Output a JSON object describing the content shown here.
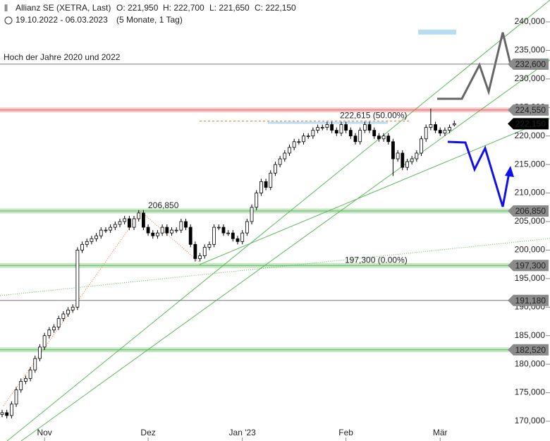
{
  "header": {
    "title": "Allianz SE (XETRA, Last)",
    "open": "O: 221,950",
    "high": "H: 222,700",
    "low": "L: 221,650",
    "close": "C: 222,150",
    "range": "19.10.2022 - 06.03.2023",
    "span": "(5 Monate, 1 Tag)"
  },
  "chart_data": {
    "type": "candlestick",
    "categories": [
      null,
      null,
      null,
      null,
      null,
      null,
      null,
      null,
      null,
      "Nov",
      null,
      null,
      null,
      null,
      null,
      null,
      null,
      null,
      null,
      null,
      null,
      null,
      null,
      null,
      null,
      null,
      null,
      null,
      null,
      null,
      null,
      "Dez",
      null,
      null,
      null,
      null,
      null,
      null,
      null,
      null,
      null,
      null,
      null,
      null,
      null,
      null,
      null,
      null,
      null,
      null,
      null,
      "Jan '23",
      null,
      null,
      null,
      null,
      null,
      null,
      null,
      null,
      null,
      null,
      null,
      null,
      null,
      null,
      null,
      null,
      null,
      null,
      null,
      null,
      null,
      "Feb",
      null,
      null,
      null,
      null,
      null,
      null,
      null,
      null,
      null,
      null,
      null,
      null,
      null,
      null,
      null,
      null,
      null,
      null,
      null,
      "Mär",
      null,
      null,
      null
    ],
    "candles": [
      [
        171.2,
        172,
        170.7,
        171.5
      ],
      [
        171.5,
        172,
        170.5,
        171
      ],
      [
        171,
        173.5,
        170.5,
        173
      ],
      [
        173,
        176,
        172.5,
        175.5
      ],
      [
        175.5,
        177.5,
        175,
        177
      ],
      [
        177,
        178,
        176.5,
        177.5
      ],
      [
        177.5,
        179.5,
        177,
        179
      ],
      [
        179,
        181.5,
        178.5,
        181
      ],
      [
        181,
        183.5,
        180.5,
        183
      ],
      [
        183,
        185.5,
        182.5,
        185
      ],
      [
        185,
        186.5,
        184.5,
        186
      ],
      [
        186,
        187,
        185.5,
        186.5
      ],
      [
        186.5,
        188.5,
        186,
        188
      ],
      [
        188,
        189.3,
        187.5,
        188.8
      ],
      [
        188.8,
        190,
        188.3,
        189.5
      ],
      [
        189.5,
        190.5,
        189,
        190
      ],
      [
        190,
        200.5,
        189.5,
        200
      ],
      [
        200,
        201.5,
        199.5,
        201
      ],
      [
        201,
        202,
        200.5,
        201.5
      ],
      [
        201.5,
        202.5,
        201,
        202
      ],
      [
        202,
        203,
        201.5,
        202.5
      ],
      [
        202.5,
        204,
        202,
        203.5
      ],
      [
        203.5,
        204,
        203,
        203.5
      ],
      [
        203.5,
        204.5,
        203,
        204
      ],
      [
        204,
        205,
        203.5,
        204.5
      ],
      [
        204.5,
        205.5,
        204,
        205
      ],
      [
        205,
        206,
        204.5,
        205.5
      ],
      [
        205.5,
        206,
        203.5,
        204
      ],
      [
        204,
        206,
        203.5,
        205.5
      ],
      [
        205.5,
        207,
        205,
        206.5
      ],
      [
        206.5,
        207,
        203.5,
        204
      ],
      [
        204,
        204.5,
        202.5,
        203
      ],
      [
        203,
        203.5,
        202,
        202.5
      ],
      [
        202.5,
        203.5,
        202,
        203
      ],
      [
        203,
        204.5,
        202.5,
        204
      ],
      [
        204,
        204.5,
        202.5,
        203
      ],
      [
        203,
        204,
        202.5,
        203.5
      ],
      [
        203.5,
        204,
        203,
        203.5
      ],
      [
        203.5,
        205.5,
        203,
        205
      ],
      [
        205,
        205.5,
        203.5,
        204
      ],
      [
        204,
        204.5,
        200.5,
        201
      ],
      [
        201,
        201.5,
        198,
        198.5
      ],
      [
        198.5,
        199.5,
        198,
        199
      ],
      [
        199,
        201,
        198.5,
        200.5
      ],
      [
        200.5,
        201.5,
        200,
        201
      ],
      [
        201,
        204.5,
        200.5,
        204
      ],
      [
        204,
        204.5,
        203.5,
        204
      ],
      [
        204,
        204.5,
        202.5,
        203
      ],
      [
        203,
        203.5,
        202.5,
        203
      ],
      [
        203,
        203.5,
        201.5,
        202
      ],
      [
        202,
        202.5,
        201,
        201.5
      ],
      [
        201.5,
        203.5,
        201,
        203
      ],
      [
        203,
        205.5,
        202.5,
        205
      ],
      [
        205,
        208,
        204.5,
        207.5
      ],
      [
        207.5,
        210.5,
        207,
        210
      ],
      [
        210,
        212.5,
        209.5,
        212
      ],
      [
        212,
        212.5,
        210.5,
        211
      ],
      [
        211,
        214,
        210.5,
        213.5
      ],
      [
        213.5,
        215.5,
        213,
        215
      ],
      [
        215,
        216.5,
        214.5,
        216
      ],
      [
        216,
        217.5,
        215.5,
        217
      ],
      [
        217,
        218.5,
        216.5,
        218
      ],
      [
        218,
        219.5,
        217.5,
        219
      ],
      [
        219,
        219.5,
        218.5,
        219
      ],
      [
        219,
        220.5,
        218.5,
        220
      ],
      [
        220,
        220.5,
        219.5,
        220
      ],
      [
        220,
        221.5,
        219.5,
        221
      ],
      [
        221,
        222,
        220.5,
        221.5
      ],
      [
        221.5,
        222,
        221,
        221.5
      ],
      [
        221.5,
        222.5,
        221,
        222
      ],
      [
        222,
        222.5,
        220.5,
        221
      ],
      [
        221,
        221.5,
        220,
        220.5
      ],
      [
        220.5,
        222.5,
        220,
        222
      ],
      [
        222,
        222.5,
        220.5,
        221
      ],
      [
        221,
        221.5,
        219.5,
        220
      ],
      [
        220,
        220.5,
        218.5,
        219
      ],
      [
        219,
        221.5,
        218.5,
        221
      ],
      [
        221,
        222.5,
        220.5,
        222
      ],
      [
        222,
        222.5,
        220.5,
        221
      ],
      [
        221,
        221.5,
        219.5,
        220
      ],
      [
        220,
        220.5,
        219,
        219.5
      ],
      [
        219.5,
        220.5,
        219,
        220
      ],
      [
        220,
        220.5,
        218.5,
        219
      ],
      [
        219,
        219.5,
        213,
        216
      ],
      [
        216,
        217.5,
        215.5,
        217
      ],
      [
        217,
        217.5,
        214,
        214.5
      ],
      [
        214.5,
        216,
        214,
        215.5
      ],
      [
        215.5,
        216.5,
        215,
        216
      ],
      [
        216,
        217.5,
        215.5,
        217
      ],
      [
        217,
        220,
        216.5,
        219.5
      ],
      [
        219.5,
        222,
        219,
        221.5
      ],
      [
        221.5,
        224.8,
        221,
        222
      ],
      [
        222,
        222.5,
        220.5,
        221
      ],
      [
        221,
        221.5,
        220,
        220.5
      ],
      [
        220.5,
        221.5,
        220,
        221
      ],
      [
        221,
        222,
        220.5,
        221.5
      ],
      [
        221.95,
        222.7,
        221.65,
        222.15
      ]
    ],
    "up_color": "#ffffff",
    "down_color": "#000000",
    "ylim": [
      168,
      243
    ],
    "yticks": [
      {
        "value": 170,
        "label": "170,000"
      },
      {
        "value": 175,
        "label": "175,000"
      },
      {
        "value": 180,
        "label": "180,000"
      },
      {
        "value": 185,
        "label": "185,000"
      },
      {
        "value": 190,
        "label": "190,000"
      },
      {
        "value": 195,
        "label": "195,000"
      },
      {
        "value": 200,
        "label": "200,000"
      },
      {
        "value": 205,
        "label": "205,000"
      },
      {
        "value": 210,
        "label": "210,000"
      },
      {
        "value": 215,
        "label": "215,000"
      },
      {
        "value": 220,
        "label": "220,000"
      },
      {
        "value": 225,
        "label": "225,000"
      },
      {
        "value": 230,
        "label": "230,000"
      },
      {
        "value": 235,
        "label": "235,000"
      },
      {
        "value": 240,
        "label": "240,000"
      }
    ],
    "levels": [
      {
        "value": 232.6,
        "label": "232,600",
        "color": "#777777",
        "band": false
      },
      {
        "value": 224.55,
        "label": "224,550",
        "color": "#e06060",
        "band": true
      },
      {
        "value": 222.15,
        "label": "222,150",
        "color": "#000000",
        "band": false
      },
      {
        "value": 206.85,
        "label": "206,850",
        "color": "#5cb85c",
        "band": true
      },
      {
        "value": 197.3,
        "label": "197,300",
        "color": "#5cb85c",
        "band": true
      },
      {
        "value": 191.18,
        "label": "191,180",
        "color": "#777777",
        "band": false
      },
      {
        "value": 182.52,
        "label": "182,520",
        "color": "#5cb85c",
        "band": true
      }
    ],
    "fib": [
      {
        "value": 222.615,
        "label": "222,615 (50.00%)"
      },
      {
        "value": 206.85,
        "label": "206,850"
      },
      {
        "value": 197.3,
        "label": "197,300 (0.00%)"
      }
    ],
    "annotation": "Hoch der Jahre 2020 und 2022"
  }
}
